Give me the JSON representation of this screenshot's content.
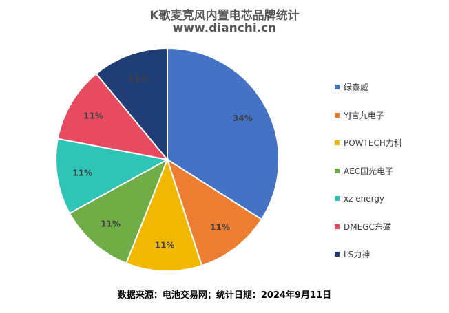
{
  "chart_data": {
    "type": "pie",
    "title": "K歌麦克风内置电芯品牌统计",
    "subtitle": "www.dianchi.cn",
    "footer": "数据来源：电池交易网；统计日期：2024年9月11日",
    "legend_position": "right",
    "slices": [
      {
        "label": "绿泰威",
        "value": 34,
        "display": "34%",
        "color": "#4472c4"
      },
      {
        "label": "YJ言九电子",
        "value": 11,
        "display": "11%",
        "color": "#ed7d31"
      },
      {
        "label": "POWTECH力科",
        "value": 11,
        "display": "11%",
        "color": "#f0b800"
      },
      {
        "label": "AEC国光电子",
        "value": 11,
        "display": "11%",
        "color": "#70ad47"
      },
      {
        "label": "xz energy",
        "value": 11,
        "display": "11%",
        "color": "#2ec4b6"
      },
      {
        "label": "DMEGC东磁",
        "value": 11,
        "display": "11%",
        "color": "#e84a5f"
      },
      {
        "label": "LS力神",
        "value": 11,
        "display": "11%",
        "color": "#203d75"
      }
    ]
  }
}
